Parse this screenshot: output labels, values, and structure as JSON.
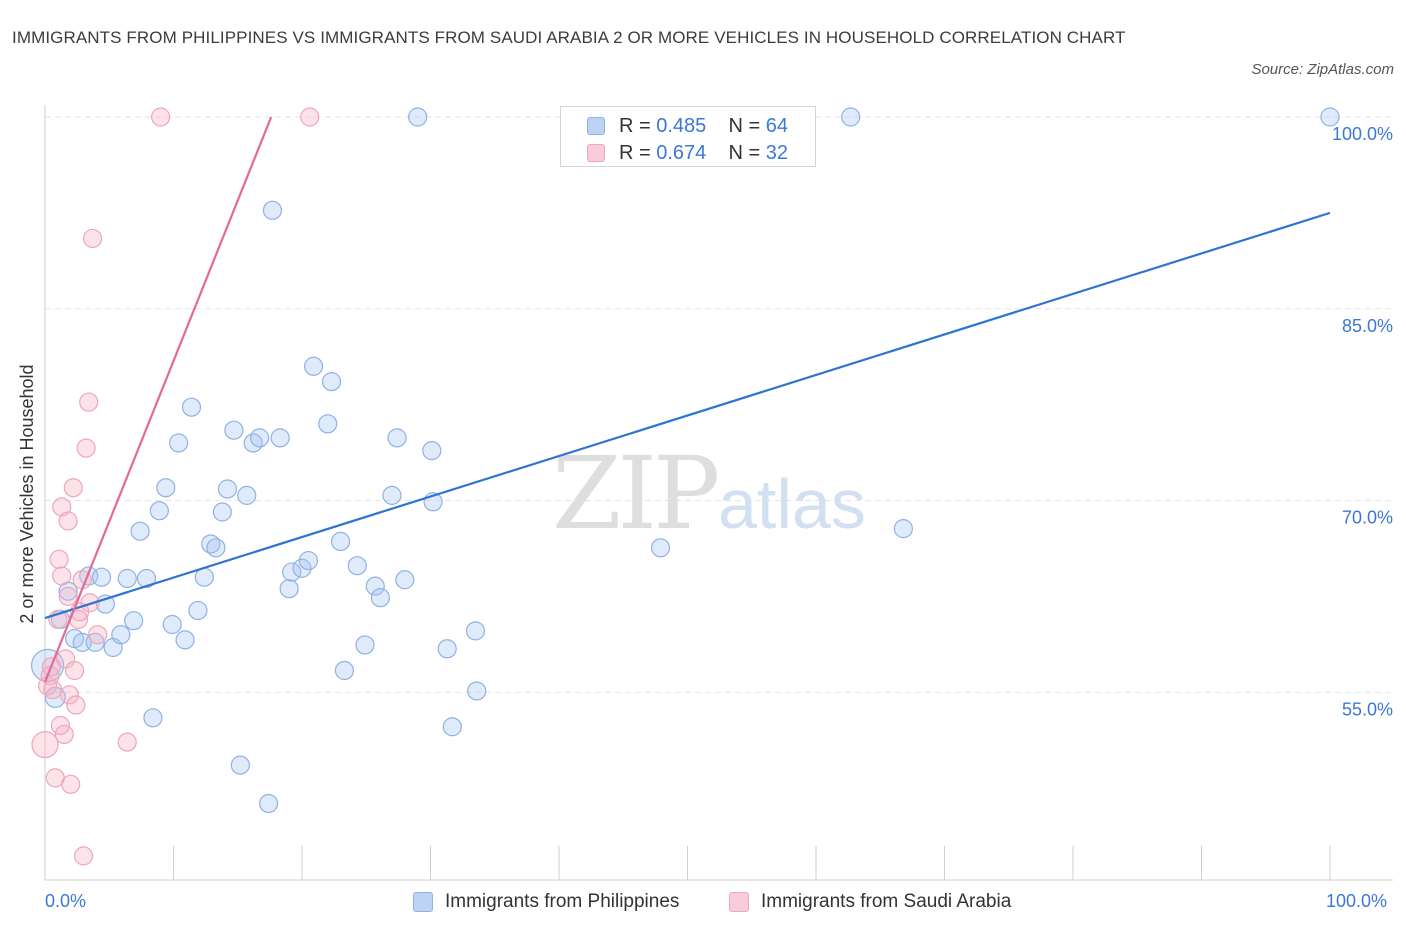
{
  "title": "IMMIGRANTS FROM PHILIPPINES VS IMMIGRANTS FROM SAUDI ARABIA 2 OR MORE VEHICLES IN HOUSEHOLD CORRELATION CHART",
  "source": "Source: ZipAtlas.com",
  "watermark": {
    "zip": "ZIP",
    "atlas": "atlas"
  },
  "legend": {
    "rows": [
      {
        "r_label": "R =",
        "r_value": "0.485",
        "n_label": "N =",
        "n_value": "64"
      },
      {
        "r_label": "R =",
        "r_value": "0.674",
        "n_label": "N =",
        "n_value": "32"
      }
    ]
  },
  "bottom_legend": {
    "philippines": "Immigrants from Philippines",
    "saudi": "Immigrants from Saudi Arabia"
  },
  "x_axis": {
    "min_label": "0.0%",
    "max_label": "100.0%"
  },
  "colors": {
    "blue_fill": "rgba(164,196,240,0.35)",
    "blue_stroke": "#8fb2e3",
    "blue_line": "#2e74d0",
    "pink_fill": "rgba(245,175,195,0.35)",
    "pink_stroke": "#eda6bc",
    "pink_line": "#e26a94",
    "tick_label": "#3b78d8",
    "grid": "#e3e3e3"
  },
  "chart_data": {
    "type": "scatter",
    "title": "IMMIGRANTS FROM PHILIPPINES VS IMMIGRANTS FROM SAUDI ARABIA 2 OR MORE VEHICLES IN HOUSEHOLD CORRELATION CHART",
    "xlabel": "",
    "ylabel": "2 or more Vehicles in Household",
    "xlim": [
      0,
      100
    ],
    "ylim": [
      40,
      100
    ],
    "y_ticks": [
      {
        "value": 55,
        "label": "55.0%"
      },
      {
        "value": 70,
        "label": "70.0%"
      },
      {
        "value": 85,
        "label": "85.0%"
      },
      {
        "value": 100,
        "label": "100.0%"
      }
    ],
    "x_ticks": [
      0,
      10,
      20,
      30,
      40,
      50,
      60,
      70,
      80,
      90,
      100
    ],
    "series": [
      {
        "name": "Immigrants from Philippines",
        "color": "blue",
        "R": 0.485,
        "N": 64,
        "trend": {
          "x": [
            0,
            100
          ],
          "y": [
            60.8,
            92.5
          ]
        },
        "points": [
          {
            "x": 0.2,
            "y": 57.1,
            "s": 16
          },
          {
            "x": 0.8,
            "y": 54.6,
            "s": 10
          },
          {
            "x": 1.2,
            "y": 60.7,
            "s": 9
          },
          {
            "x": 1.8,
            "y": 62.9,
            "s": 9
          },
          {
            "x": 2.3,
            "y": 59.2,
            "s": 9
          },
          {
            "x": 2.9,
            "y": 58.9,
            "s": 9
          },
          {
            "x": 3.4,
            "y": 64.1,
            "s": 9
          },
          {
            "x": 3.9,
            "y": 58.9,
            "s": 9
          },
          {
            "x": 4.4,
            "y": 64.0,
            "s": 9
          },
          {
            "x": 4.7,
            "y": 61.9,
            "s": 9
          },
          {
            "x": 5.3,
            "y": 58.5,
            "s": 9
          },
          {
            "x": 5.9,
            "y": 59.5,
            "s": 9
          },
          {
            "x": 6.4,
            "y": 63.9,
            "s": 9
          },
          {
            "x": 6.9,
            "y": 60.6,
            "s": 9
          },
          {
            "x": 7.4,
            "y": 67.6,
            "s": 9
          },
          {
            "x": 7.9,
            "y": 63.9,
            "s": 9
          },
          {
            "x": 8.4,
            "y": 53.0,
            "s": 9
          },
          {
            "x": 8.9,
            "y": 69.2,
            "s": 9
          },
          {
            "x": 9.4,
            "y": 71.0,
            "s": 9
          },
          {
            "x": 9.9,
            "y": 60.3,
            "s": 9
          },
          {
            "x": 10.4,
            "y": 74.5,
            "s": 9
          },
          {
            "x": 10.9,
            "y": 59.1,
            "s": 9
          },
          {
            "x": 11.4,
            "y": 77.3,
            "s": 9
          },
          {
            "x": 11.9,
            "y": 61.4,
            "s": 9
          },
          {
            "x": 12.4,
            "y": 64.0,
            "s": 9
          },
          {
            "x": 12.9,
            "y": 66.6,
            "s": 9
          },
          {
            "x": 13.3,
            "y": 66.3,
            "s": 9
          },
          {
            "x": 13.8,
            "y": 69.1,
            "s": 9
          },
          {
            "x": 14.2,
            "y": 70.9,
            "s": 9
          },
          {
            "x": 14.7,
            "y": 75.5,
            "s": 9
          },
          {
            "x": 15.2,
            "y": 49.3,
            "s": 9
          },
          {
            "x": 15.7,
            "y": 70.4,
            "s": 9
          },
          {
            "x": 16.2,
            "y": 74.5,
            "s": 9
          },
          {
            "x": 16.7,
            "y": 74.9,
            "s": 9
          },
          {
            "x": 17.4,
            "y": 46.3,
            "s": 9
          },
          {
            "x": 17.7,
            "y": 92.7,
            "s": 9
          },
          {
            "x": 18.3,
            "y": 74.9,
            "s": 9
          },
          {
            "x": 19.0,
            "y": 63.1,
            "s": 9
          },
          {
            "x": 19.2,
            "y": 64.4,
            "s": 9
          },
          {
            "x": 20.0,
            "y": 64.7,
            "s": 9
          },
          {
            "x": 20.5,
            "y": 65.3,
            "s": 9
          },
          {
            "x": 20.9,
            "y": 80.5,
            "s": 9
          },
          {
            "x": 22.0,
            "y": 76.0,
            "s": 9
          },
          {
            "x": 22.3,
            "y": 79.3,
            "s": 9
          },
          {
            "x": 23.0,
            "y": 66.8,
            "s": 9
          },
          {
            "x": 23.3,
            "y": 56.7,
            "s": 9
          },
          {
            "x": 24.3,
            "y": 64.9,
            "s": 9
          },
          {
            "x": 24.9,
            "y": 58.7,
            "s": 9
          },
          {
            "x": 25.7,
            "y": 63.3,
            "s": 9
          },
          {
            "x": 26.1,
            "y": 62.4,
            "s": 9
          },
          {
            "x": 27.0,
            "y": 70.4,
            "s": 9
          },
          {
            "x": 27.4,
            "y": 74.9,
            "s": 9
          },
          {
            "x": 28.0,
            "y": 63.8,
            "s": 9
          },
          {
            "x": 29.0,
            "y": 100.0,
            "s": 9
          },
          {
            "x": 30.1,
            "y": 73.9,
            "s": 9
          },
          {
            "x": 30.2,
            "y": 69.9,
            "s": 9
          },
          {
            "x": 31.3,
            "y": 58.4,
            "s": 9
          },
          {
            "x": 31.7,
            "y": 52.3,
            "s": 9
          },
          {
            "x": 33.5,
            "y": 59.8,
            "s": 9
          },
          {
            "x": 33.6,
            "y": 55.1,
            "s": 9
          },
          {
            "x": 47.9,
            "y": 66.3,
            "s": 9
          },
          {
            "x": 62.7,
            "y": 100.0,
            "s": 9
          },
          {
            "x": 66.8,
            "y": 67.8,
            "s": 9
          },
          {
            "x": 100.0,
            "y": 100.0,
            "s": 9
          }
        ]
      },
      {
        "name": "Immigrants from Saudi Arabia",
        "color": "pink",
        "R": 0.674,
        "N": 32,
        "trend": {
          "x": [
            0,
            17.6
          ],
          "y": [
            55.8,
            100.0
          ]
        },
        "points": [
          {
            "x": 0.0,
            "y": 50.9,
            "s": 13
          },
          {
            "x": 0.2,
            "y": 55.5,
            "s": 9
          },
          {
            "x": 0.4,
            "y": 56.3,
            "s": 9
          },
          {
            "x": 0.6,
            "y": 55.2,
            "s": 9
          },
          {
            "x": 0.8,
            "y": 48.3,
            "s": 9
          },
          {
            "x": 1.0,
            "y": 60.7,
            "s": 9
          },
          {
            "x": 1.1,
            "y": 65.4,
            "s": 9
          },
          {
            "x": 1.3,
            "y": 64.1,
            "s": 9
          },
          {
            "x": 1.2,
            "y": 52.4,
            "s": 9
          },
          {
            "x": 1.3,
            "y": 69.5,
            "s": 9
          },
          {
            "x": 1.5,
            "y": 51.7,
            "s": 9
          },
          {
            "x": 1.6,
            "y": 57.6,
            "s": 9
          },
          {
            "x": 1.8,
            "y": 62.5,
            "s": 9
          },
          {
            "x": 1.8,
            "y": 68.4,
            "s": 9
          },
          {
            "x": 1.9,
            "y": 54.8,
            "s": 9
          },
          {
            "x": 2.0,
            "y": 47.8,
            "s": 9
          },
          {
            "x": 2.2,
            "y": 71.0,
            "s": 9
          },
          {
            "x": 2.3,
            "y": 56.7,
            "s": 9
          },
          {
            "x": 2.4,
            "y": 54.0,
            "s": 9
          },
          {
            "x": 2.6,
            "y": 60.7,
            "s": 9
          },
          {
            "x": 2.7,
            "y": 61.3,
            "s": 9
          },
          {
            "x": 2.9,
            "y": 63.8,
            "s": 9
          },
          {
            "x": 3.0,
            "y": 42.2,
            "s": 9
          },
          {
            "x": 3.2,
            "y": 74.1,
            "s": 9
          },
          {
            "x": 3.4,
            "y": 77.7,
            "s": 9
          },
          {
            "x": 3.5,
            "y": 62.0,
            "s": 9
          },
          {
            "x": 3.7,
            "y": 90.5,
            "s": 9
          },
          {
            "x": 4.1,
            "y": 59.5,
            "s": 9
          },
          {
            "x": 6.4,
            "y": 51.1,
            "s": 9
          },
          {
            "x": 9.0,
            "y": 100.0,
            "s": 9
          },
          {
            "x": 20.6,
            "y": 100.0,
            "s": 9
          },
          {
            "x": 0.5,
            "y": 57.0,
            "s": 9
          }
        ]
      }
    ]
  }
}
